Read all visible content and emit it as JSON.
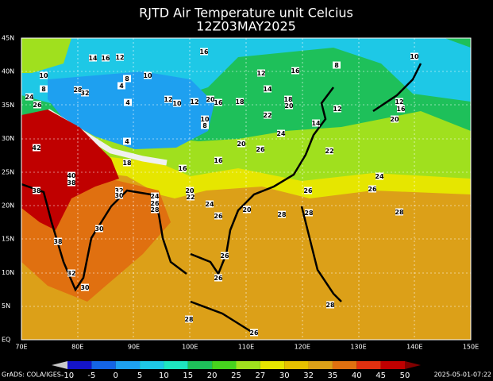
{
  "header": {
    "title": "RJTD Air Temperature unit Celcius",
    "subtitle": "12Z03MAY2025"
  },
  "lat_labels": [
    "45N",
    "40N",
    "35N",
    "30N",
    "25N",
    "20N",
    "15N",
    "10N",
    "5N",
    "EQ"
  ],
  "lon_labels": [
    "70E",
    "80E",
    "90E",
    "100E",
    "110E",
    "120E",
    "130E",
    "140E",
    "150E"
  ],
  "colorbar": {
    "labels": [
      "-10",
      "-5",
      "0",
      "5",
      "10",
      "15",
      "20",
      "25",
      "27",
      "30",
      "32",
      "35",
      "40",
      "45",
      "50"
    ],
    "colors": [
      "#c8c8c8",
      "#1414c8",
      "#1464e6",
      "#1ea0f0",
      "#1ec8e6",
      "#1ee6c0",
      "#1ec05a",
      "#46d21e",
      "#a0e01e",
      "#e6e600",
      "#e6c000",
      "#dca018",
      "#e07010",
      "#e03010",
      "#c00000",
      "#800000"
    ]
  },
  "footer": {
    "left": "GrADS: COLA/IGES",
    "right": "2025-05-01-07:22"
  },
  "contour_labels": [
    "14",
    "16",
    "12",
    "16",
    "10",
    "10",
    "4",
    "8",
    "28",
    "32",
    "8",
    "24",
    "26",
    "4",
    "12",
    "10",
    "12",
    "20",
    "16",
    "18",
    "12",
    "16",
    "14",
    "18",
    "20",
    "12",
    "12",
    "16",
    "20",
    "10",
    "8",
    "22",
    "14",
    "10",
    "8",
    "20",
    "26",
    "24",
    "22",
    "4",
    "42",
    "40",
    "38",
    "38",
    "32",
    "30",
    "18",
    "16",
    "16",
    "20",
    "22",
    "24",
    "26",
    "28",
    "24",
    "26",
    "20",
    "28",
    "26",
    "28",
    "26",
    "24",
    "28",
    "30",
    "38",
    "32",
    "30",
    "26",
    "26",
    "28",
    "28",
    "26"
  ]
}
